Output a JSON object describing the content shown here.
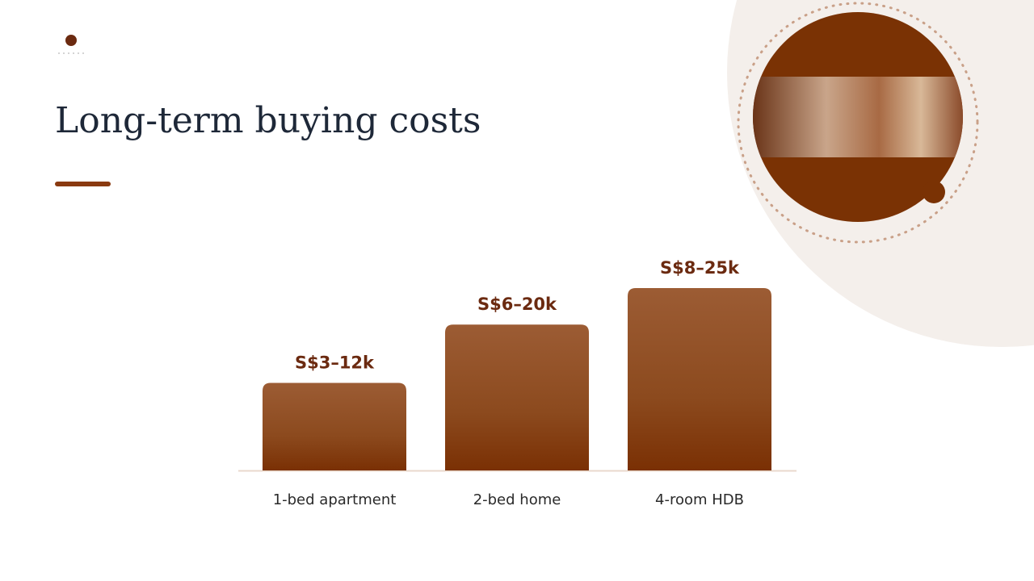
{
  "chart_data": {
    "type": "bar",
    "title": "Long-term buying costs",
    "categories": [
      "1-bed apartment",
      "2-bed home",
      "4-room HDB"
    ],
    "values": [
      12,
      20,
      25
    ],
    "value_labels": [
      "S$3–12k",
      "S$6–20k",
      "S$8–25k"
    ],
    "color": "#8a4418"
  }
}
